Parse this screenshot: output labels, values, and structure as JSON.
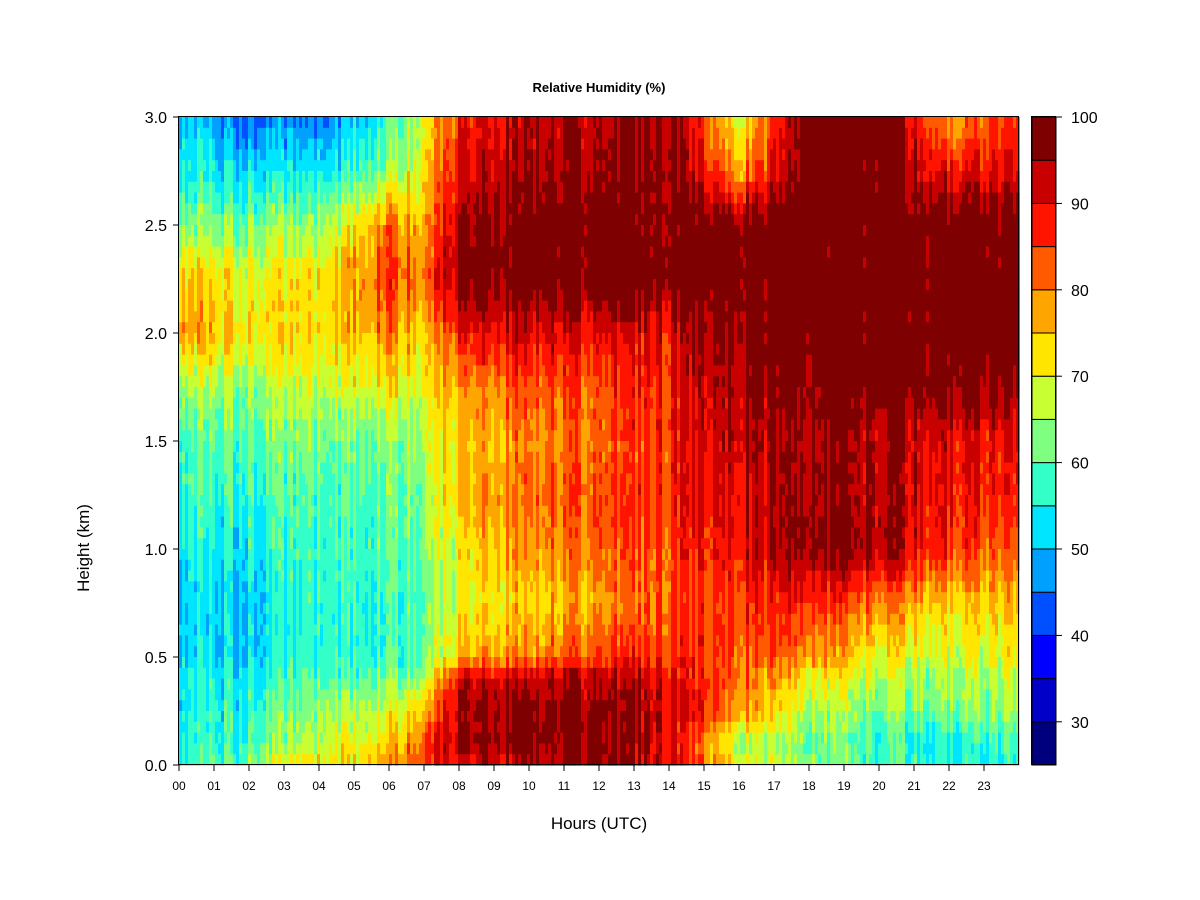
{
  "chart_data": {
    "type": "heatmap",
    "title": "Relative Humidity (%)",
    "xlabel": "Hours (UTC)",
    "ylabel": "Height (km)",
    "xlim": [
      0,
      24
    ],
    "ylim": [
      0.0,
      3.0
    ],
    "x_ticks": [
      "00",
      "01",
      "02",
      "03",
      "04",
      "05",
      "06",
      "07",
      "08",
      "09",
      "10",
      "11",
      "12",
      "13",
      "14",
      "15",
      "16",
      "17",
      "18",
      "19",
      "20",
      "21",
      "22",
      "23"
    ],
    "y_ticks": [
      "0.0",
      "0.5",
      "1.0",
      "1.5",
      "2.0",
      "2.5",
      "3.0"
    ],
    "colorbar": {
      "min": 25,
      "max": 100,
      "step": 5,
      "tick_labels": [
        "30",
        "40",
        "50",
        "60",
        "70",
        "80",
        "90",
        "100"
      ],
      "colors": [
        "#00007f",
        "#0000c8",
        "#0000ff",
        "#0050ff",
        "#00a0ff",
        "#00e5ff",
        "#33ffc8",
        "#7fff7f",
        "#c8ff33",
        "#ffe500",
        "#ffa500",
        "#ff5a00",
        "#ff1400",
        "#c80000",
        "#7f0000"
      ]
    },
    "grid_hours": [
      0,
      2,
      4,
      6,
      7,
      8,
      10,
      12,
      14,
      16,
      18,
      20,
      22,
      24
    ],
    "grid_heights_km": [
      0.0,
      0.1,
      0.25,
      0.4,
      0.5,
      0.75,
      1.0,
      1.25,
      1.5,
      1.75,
      2.0,
      2.25,
      2.5,
      2.75,
      3.0
    ],
    "values_rh": [
      [
        58,
        62,
        72,
        78,
        85,
        90,
        94,
        96,
        92,
        72,
        64,
        58,
        56,
        55
      ],
      [
        57,
        58,
        68,
        74,
        84,
        96,
        98,
        98,
        90,
        67,
        62,
        57,
        54,
        58
      ],
      [
        56,
        56,
        64,
        70,
        76,
        94,
        98,
        97,
        92,
        80,
        66,
        62,
        62,
        64
      ],
      [
        55,
        55,
        60,
        62,
        66,
        92,
        94,
        94,
        90,
        82,
        72,
        66,
        64,
        66
      ],
      [
        53,
        52,
        57,
        58,
        60,
        76,
        80,
        85,
        86,
        84,
        80,
        70,
        68,
        70
      ],
      [
        53,
        51,
        57,
        58,
        60,
        70,
        74,
        78,
        82,
        86,
        88,
        80,
        74,
        74
      ],
      [
        56,
        54,
        58,
        60,
        62,
        72,
        80,
        82,
        84,
        90,
        98,
        96,
        86,
        82
      ],
      [
        58,
        57,
        59,
        61,
        64,
        76,
        82,
        84,
        86,
        92,
        96,
        94,
        88,
        86
      ],
      [
        60,
        60,
        62,
        63,
        66,
        74,
        80,
        82,
        86,
        94,
        96,
        94,
        90,
        88
      ],
      [
        66,
        64,
        68,
        72,
        70,
        78,
        84,
        84,
        88,
        96,
        98,
        100,
        98,
        96
      ],
      [
        80,
        72,
        73,
        80,
        74,
        88,
        92,
        90,
        90,
        99,
        100,
        100,
        100,
        100
      ],
      [
        76,
        70,
        72,
        86,
        80,
        99,
        100,
        100,
        100,
        100,
        100,
        100,
        100,
        100
      ],
      [
        64,
        62,
        64,
        82,
        76,
        96,
        100,
        100,
        98,
        100,
        100,
        100,
        100,
        98
      ],
      [
        56,
        52,
        54,
        64,
        72,
        90,
        96,
        96,
        98,
        78,
        100,
        100,
        88,
        90
      ],
      [
        52,
        44,
        44,
        58,
        70,
        88,
        94,
        94,
        96,
        70,
        100,
        100,
        78,
        84
      ]
    ]
  }
}
